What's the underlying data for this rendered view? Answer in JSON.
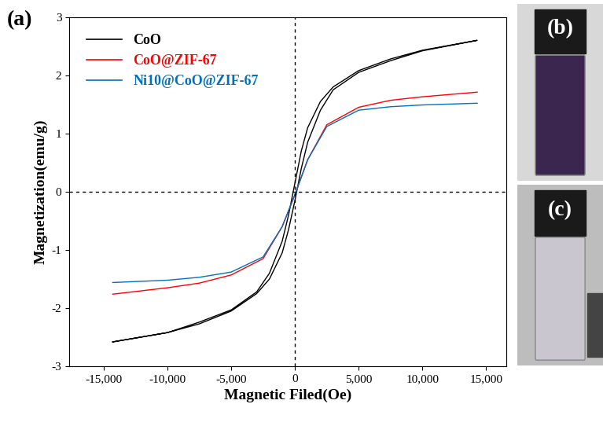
{
  "chart_data": {
    "type": "line",
    "annotations": [
      "(a)"
    ],
    "x_label": "Magnetic Filed(Oe)",
    "y_label": "Magnetization(emu/g)",
    "xlim": [
      -17700,
      16600
    ],
    "ylim": [
      -3,
      3
    ],
    "xticks": [
      {
        "value": -15000,
        "label": "-15,000"
      },
      {
        "value": -10000,
        "label": "-10,000"
      },
      {
        "value": -5000,
        "label": "-5,000"
      },
      0,
      {
        "value": 5000,
        "label": "5,000"
      },
      {
        "value": 10000,
        "label": "10,000"
      },
      {
        "value": 15000,
        "label": "15,000"
      }
    ],
    "yticks": [
      -3,
      -2,
      -1,
      0,
      1,
      2,
      3
    ],
    "grid": false,
    "legend": "upper left",
    "series": [
      {
        "name": "CoO",
        "color": "#000000",
        "x": [
          -14300,
          -10000,
          -7500,
          -5000,
          -3000,
          -2000,
          -1000,
          -500,
          0,
          500,
          1000,
          2000,
          3000,
          5000,
          7500,
          10000,
          14300,
          10000,
          7500,
          5000,
          3000,
          2000,
          1000,
          500,
          0,
          -500,
          -1000,
          -2000,
          -3000,
          -5000,
          -7500,
          -10000,
          -14300
        ],
        "values": [
          -2.58,
          -2.42,
          -2.27,
          -2.05,
          -1.75,
          -1.5,
          -1.05,
          -0.65,
          -0.15,
          0.4,
          0.85,
          1.4,
          1.75,
          2.05,
          2.25,
          2.42,
          2.6,
          2.43,
          2.28,
          2.08,
          1.8,
          1.55,
          1.1,
          0.7,
          0.15,
          -0.4,
          -0.85,
          -1.4,
          -1.72,
          -2.03,
          -2.24,
          -2.42,
          -2.58
        ]
      },
      {
        "name": "CoO@ZIF-67",
        "color": "#ff0000",
        "x": [
          -14300,
          -10000,
          -7500,
          -5000,
          -2500,
          -1000,
          0,
          1000,
          2500,
          5000,
          7500,
          10000,
          14300
        ],
        "values": [
          -1.76,
          -1.65,
          -1.57,
          -1.43,
          -1.15,
          -0.6,
          -0.05,
          0.55,
          1.15,
          1.45,
          1.57,
          1.63,
          1.71
        ]
      },
      {
        "name": "Ni10@CoO@ZIF-67",
        "color": "#0070c0",
        "x": [
          -14300,
          -10000,
          -7500,
          -5000,
          -2500,
          -1000,
          0,
          1000,
          2500,
          5000,
          7500,
          10000,
          14300
        ],
        "values": [
          -1.56,
          -1.52,
          -1.47,
          -1.38,
          -1.12,
          -0.6,
          -0.05,
          0.55,
          1.12,
          1.4,
          1.46,
          1.49,
          1.52
        ]
      }
    ]
  },
  "photos": [
    {
      "label": "(b)"
    },
    {
      "label": "(c)"
    }
  ]
}
